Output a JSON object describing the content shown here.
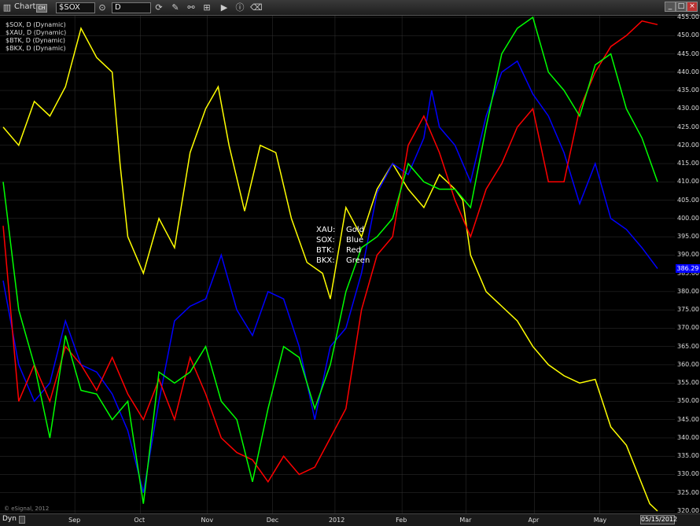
{
  "titlebar": {
    "title": "Chart",
    "badge": "CH",
    "symbol": "$SOX",
    "interval": "D"
  },
  "footer": {
    "mode": "Dyn",
    "watermark": "© eSignal, 2012",
    "date": "05/15/2012"
  },
  "legend": [
    "$SOX, D (Dynamic)",
    "$XAU, D (Dynamic)",
    "$BTK, D (Dynamic)",
    "$BKX, D (Dynamic)"
  ],
  "annotation": [
    {
      "key": "XAU:",
      "value": "Gold"
    },
    {
      "key": "SOX:",
      "value": "Blue"
    },
    {
      "key": "BTK:",
      "value": "Red"
    },
    {
      "key": "BKX:",
      "value": "Green"
    }
  ],
  "last_value_label": "386.29",
  "colors": {
    "XAU": "#ffff00",
    "SOX": "#0000ff",
    "BTK": "#ff0000",
    "BKX": "#00ff00",
    "background": "#000000",
    "grid": "#333333"
  },
  "chart_data": {
    "type": "line",
    "ylim": [
      320,
      455
    ],
    "yticks": [
      320,
      325,
      330,
      335,
      340,
      345,
      350,
      355,
      360,
      365,
      370,
      375,
      380,
      385,
      390,
      395,
      400,
      405,
      410,
      415,
      420,
      425,
      430,
      435,
      440,
      445,
      450,
      455
    ],
    "xlim": [
      0,
      42
    ],
    "xticks": [
      {
        "label": "Sep",
        "x": 4.6
      },
      {
        "label": "Oct",
        "x": 8.8
      },
      {
        "label": "Nov",
        "x": 13.1
      },
      {
        "label": "Dec",
        "x": 17.3
      },
      {
        "label": "2012",
        "x": 21.3
      },
      {
        "label": "Feb",
        "x": 25.6
      },
      {
        "label": "Mar",
        "x": 29.7
      },
      {
        "label": "Apr",
        "x": 34.1
      },
      {
        "label": "May",
        "x": 38.3
      }
    ],
    "grid": true,
    "series": [
      {
        "name": "XAU",
        "color": "#ffff00",
        "points": [
          [
            0,
            425
          ],
          [
            1,
            420
          ],
          [
            2,
            432
          ],
          [
            3,
            428
          ],
          [
            4,
            436
          ],
          [
            5,
            452
          ],
          [
            6,
            444
          ],
          [
            7,
            440
          ],
          [
            7.5,
            415
          ],
          [
            8,
            395
          ],
          [
            9,
            385
          ],
          [
            10,
            400
          ],
          [
            11,
            392
          ],
          [
            12,
            418
          ],
          [
            13,
            430
          ],
          [
            13.8,
            436
          ],
          [
            14.5,
            420
          ],
          [
            15.5,
            402
          ],
          [
            16.5,
            420
          ],
          [
            17.5,
            418
          ],
          [
            18.5,
            400
          ],
          [
            19.5,
            388
          ],
          [
            20.5,
            385
          ],
          [
            21,
            378
          ],
          [
            22,
            403
          ],
          [
            23,
            395
          ],
          [
            24,
            408
          ],
          [
            25,
            415
          ],
          [
            26,
            408
          ],
          [
            27,
            403
          ],
          [
            28,
            412
          ],
          [
            29,
            408
          ],
          [
            29.5,
            405
          ],
          [
            30,
            390
          ],
          [
            31,
            380
          ],
          [
            32,
            376
          ],
          [
            33,
            372
          ],
          [
            34,
            365
          ],
          [
            35,
            360
          ],
          [
            36,
            357
          ],
          [
            37,
            355
          ],
          [
            38,
            356
          ],
          [
            39,
            343
          ],
          [
            40,
            338
          ],
          [
            41.5,
            322
          ],
          [
            42,
            320
          ]
        ]
      },
      {
        "name": "SOX",
        "color": "#0000ff",
        "points": [
          [
            0,
            383
          ],
          [
            1,
            360
          ],
          [
            2,
            350
          ],
          [
            3,
            355
          ],
          [
            4,
            372
          ],
          [
            5,
            360
          ],
          [
            6,
            358
          ],
          [
            7,
            352
          ],
          [
            8,
            342
          ],
          [
            9,
            325
          ],
          [
            10,
            350
          ],
          [
            11,
            372
          ],
          [
            12,
            376
          ],
          [
            13,
            378
          ],
          [
            14,
            390
          ],
          [
            15,
            375
          ],
          [
            16,
            368
          ],
          [
            17,
            380
          ],
          [
            18,
            378
          ],
          [
            19,
            365
          ],
          [
            20,
            345
          ],
          [
            21,
            365
          ],
          [
            22,
            370
          ],
          [
            23,
            385
          ],
          [
            24,
            407
          ],
          [
            25,
            415
          ],
          [
            26,
            412
          ],
          [
            27,
            422
          ],
          [
            27.5,
            435
          ],
          [
            28,
            425
          ],
          [
            29,
            420
          ],
          [
            30,
            410
          ],
          [
            31,
            428
          ],
          [
            32,
            440
          ],
          [
            33,
            443
          ],
          [
            34,
            434
          ],
          [
            35,
            428
          ],
          [
            36,
            418
          ],
          [
            37,
            404
          ],
          [
            38,
            415
          ],
          [
            39,
            400
          ],
          [
            40,
            397
          ],
          [
            41,
            392
          ],
          [
            42,
            386.3
          ]
        ]
      },
      {
        "name": "BTK",
        "color": "#ff0000",
        "points": [
          [
            0,
            398
          ],
          [
            1,
            350
          ],
          [
            2,
            360
          ],
          [
            3,
            350
          ],
          [
            4,
            365
          ],
          [
            5,
            360
          ],
          [
            6,
            353
          ],
          [
            7,
            362
          ],
          [
            8,
            352
          ],
          [
            9,
            345
          ],
          [
            10,
            356
          ],
          [
            11,
            345
          ],
          [
            12,
            362
          ],
          [
            13,
            352
          ],
          [
            14,
            340
          ],
          [
            15,
            336
          ],
          [
            16,
            334
          ],
          [
            17,
            328
          ],
          [
            18,
            335
          ],
          [
            19,
            330
          ],
          [
            20,
            332
          ],
          [
            21,
            340
          ],
          [
            22,
            348
          ],
          [
            23,
            375
          ],
          [
            24,
            390
          ],
          [
            25,
            395
          ],
          [
            26,
            420
          ],
          [
            27,
            428
          ],
          [
            28,
            418
          ],
          [
            29,
            405
          ],
          [
            30,
            395
          ],
          [
            31,
            408
          ],
          [
            32,
            415
          ],
          [
            33,
            425
          ],
          [
            34,
            430
          ],
          [
            35,
            410
          ],
          [
            36,
            410
          ],
          [
            37,
            430
          ],
          [
            38,
            440
          ],
          [
            39,
            447
          ],
          [
            40,
            450
          ],
          [
            41,
            454
          ],
          [
            42,
            453
          ]
        ]
      },
      {
        "name": "BKX",
        "color": "#00ff00",
        "points": [
          [
            0,
            410
          ],
          [
            1,
            375
          ],
          [
            2,
            360
          ],
          [
            3,
            340
          ],
          [
            4,
            368
          ],
          [
            5,
            353
          ],
          [
            6,
            352
          ],
          [
            7,
            345
          ],
          [
            8,
            350
          ],
          [
            9,
            322
          ],
          [
            10,
            358
          ],
          [
            11,
            355
          ],
          [
            12,
            358
          ],
          [
            13,
            365
          ],
          [
            14,
            350
          ],
          [
            15,
            345
          ],
          [
            16,
            328
          ],
          [
            17,
            348
          ],
          [
            18,
            365
          ],
          [
            19,
            362
          ],
          [
            20,
            348
          ],
          [
            21,
            360
          ],
          [
            22,
            380
          ],
          [
            23,
            392
          ],
          [
            24,
            395
          ],
          [
            25,
            400
          ],
          [
            26,
            415
          ],
          [
            27,
            410
          ],
          [
            28,
            408
          ],
          [
            29,
            408
          ],
          [
            30,
            403
          ],
          [
            31,
            425
          ],
          [
            32,
            445
          ],
          [
            33,
            452
          ],
          [
            34,
            455
          ],
          [
            35,
            440
          ],
          [
            36,
            435
          ],
          [
            37,
            428
          ],
          [
            38,
            442
          ],
          [
            39,
            445
          ],
          [
            40,
            430
          ],
          [
            41,
            422
          ],
          [
            42,
            410
          ]
        ]
      }
    ]
  }
}
